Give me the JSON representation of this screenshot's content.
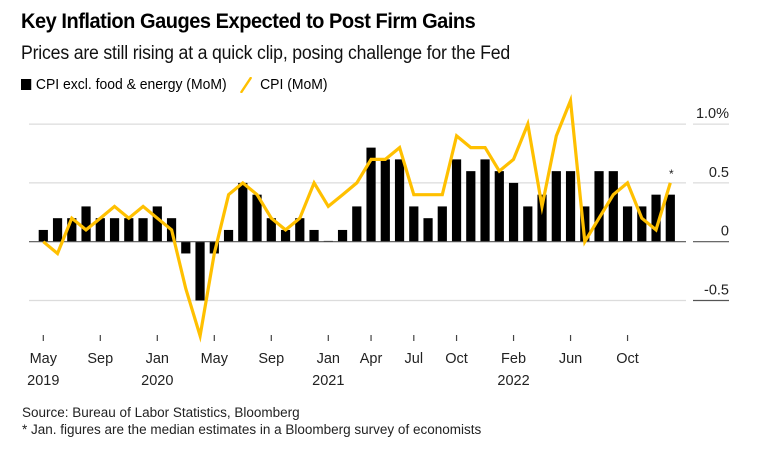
{
  "header": {
    "title": "Key Inflation Gauges Expected to Post Firm Gains",
    "subtitle": "Prices are still rising at a quick clip, posing challenge for the Fed"
  },
  "legend": {
    "items": [
      {
        "label": "CPI excl. food & energy (MoM)",
        "icon": "square-swatch-icon",
        "color": "#000000"
      },
      {
        "label": "CPI (MoM)",
        "icon": "line-swatch-icon",
        "color": "#FFC000"
      }
    ]
  },
  "footer": {
    "source": "Source: Bureau of Labor Statistics, Bloomberg",
    "note": "* Jan. figures are the median estimates in a Bloomberg survey of economists"
  },
  "chart_data": {
    "type": "bar",
    "title": "Key Inflation Gauges Expected to Post Firm Gains",
    "subtitle": "Prices are still rising at a quick clip, posing challenge for the Fed",
    "xlabel": "",
    "ylabel": "",
    "ylim": [
      -0.8,
      1.2
    ],
    "y_ticks": [
      {
        "value": 1.0,
        "label": "1.0%"
      },
      {
        "value": 0.5,
        "label": "0.5"
      },
      {
        "value": 0,
        "label": "0"
      },
      {
        "value": -0.5,
        "label": "-0.5"
      }
    ],
    "y_axis_position": "right",
    "grid": true,
    "legend_position": "top-left",
    "categories": [
      "May 2019",
      "Jun 2019",
      "Jul 2019",
      "Aug 2019",
      "Sep 2019",
      "Oct 2019",
      "Nov 2019",
      "Dec 2019",
      "Jan 2020",
      "Feb 2020",
      "Mar 2020",
      "Apr 2020",
      "May 2020",
      "Jun 2020",
      "Jul 2020",
      "Aug 2020",
      "Sep 2020",
      "Oct 2020",
      "Nov 2020",
      "Dec 2020",
      "Jan 2021",
      "Feb 2021",
      "Mar 2021",
      "Apr 2021",
      "May 2021",
      "Jun 2021",
      "Jul 2021",
      "Aug 2021",
      "Sep 2021",
      "Oct 2021",
      "Nov 2021",
      "Dec 2021",
      "Jan 2022",
      "Feb 2022",
      "Mar 2022",
      "Apr 2022",
      "May 2022",
      "Jun 2022",
      "Jul 2022",
      "Aug 2022",
      "Sep 2022",
      "Oct 2022",
      "Nov 2022",
      "Dec 2022",
      "Jan 2023"
    ],
    "x_ticks": [
      {
        "index": 0,
        "label": "May",
        "year": "2019"
      },
      {
        "index": 4,
        "label": "Sep",
        "year": ""
      },
      {
        "index": 8,
        "label": "Jan",
        "year": "2020"
      },
      {
        "index": 12,
        "label": "May",
        "year": ""
      },
      {
        "index": 16,
        "label": "Sep",
        "year": ""
      },
      {
        "index": 20,
        "label": "Jan",
        "year": "2021"
      },
      {
        "index": 23,
        "label": "Apr",
        "year": ""
      },
      {
        "index": 26,
        "label": "Jul",
        "year": ""
      },
      {
        "index": 29,
        "label": "Oct",
        "year": ""
      },
      {
        "index": 33,
        "label": "Feb",
        "year": "2022"
      },
      {
        "index": 37,
        "label": "Jun",
        "year": ""
      },
      {
        "index": 41,
        "label": "Oct",
        "year": ""
      }
    ],
    "series": [
      {
        "name": "CPI excl. food & energy (MoM)",
        "type": "bar",
        "color": "#000000",
        "values": [
          0.1,
          0.2,
          0.2,
          0.3,
          0.2,
          0.2,
          0.2,
          0.2,
          0.3,
          0.2,
          -0.1,
          -0.5,
          -0.1,
          0.1,
          0.5,
          0.4,
          0.2,
          0.1,
          0.2,
          0.1,
          0.0,
          0.1,
          0.3,
          0.8,
          0.7,
          0.7,
          0.3,
          0.2,
          0.3,
          0.7,
          0.6,
          0.7,
          0.6,
          0.5,
          0.3,
          0.4,
          0.6,
          0.6,
          0.3,
          0.6,
          0.6,
          0.3,
          0.3,
          0.4,
          0.4
        ]
      },
      {
        "name": "CPI (MoM)",
        "type": "line",
        "color": "#FFC000",
        "values": [
          0.0,
          -0.1,
          0.2,
          0.1,
          0.2,
          0.3,
          0.2,
          0.3,
          0.2,
          0.1,
          -0.4,
          -0.8,
          -0.1,
          0.4,
          0.5,
          0.4,
          0.2,
          0.1,
          0.2,
          0.5,
          0.3,
          0.4,
          0.5,
          0.7,
          0.7,
          0.8,
          0.4,
          0.4,
          0.4,
          0.9,
          0.8,
          0.8,
          0.6,
          0.7,
          1.0,
          0.3,
          0.9,
          1.2,
          0.0,
          0.2,
          0.4,
          0.5,
          0.2,
          0.1,
          0.5
        ]
      }
    ],
    "annotations": [
      {
        "index": 44,
        "text": "*",
        "note": "Jan. figures are estimates"
      }
    ]
  }
}
